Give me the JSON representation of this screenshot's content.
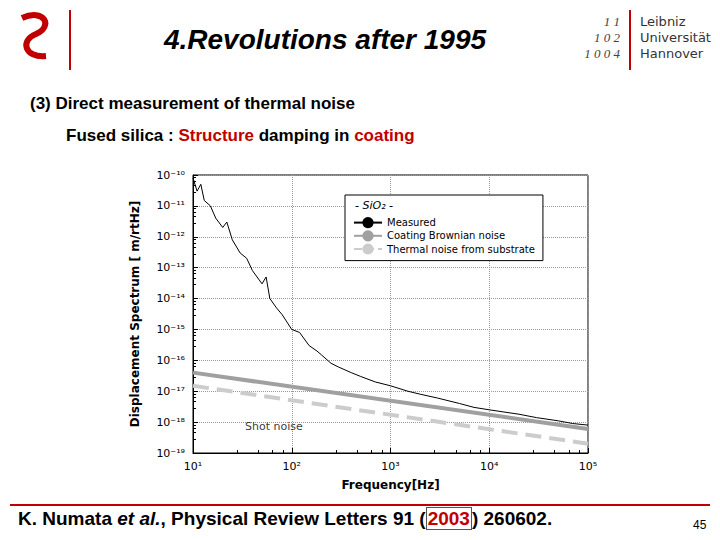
{
  "slide": {
    "title": "4.Revolutions after 1995",
    "university": [
      "Leibniz",
      "Universität",
      "Hannover"
    ],
    "logo_digits": [
      "1 1",
      "1 0 2",
      "1 0 0 4"
    ],
    "subtitle_lines": [
      [
        {
          "text": "(3) Direct measurement of thermal noise"
        }
      ],
      [
        {
          "text": "Fused silica : "
        },
        {
          "text": "Structure",
          "color": "#c00000"
        },
        {
          "text": " damping in "
        },
        {
          "text": "coating",
          "color": "#c00000"
        }
      ]
    ],
    "citation": [
      {
        "text": "K. Numata "
      },
      {
        "text": "et al.",
        "italic": true
      },
      {
        "text": ", Physical Review Letters 91 ("
      },
      {
        "text": "2003",
        "color": "#c00000",
        "boxed": true
      },
      {
        "text": ") 260602."
      }
    ],
    "page_number": "45"
  },
  "chart_data": {
    "type": "line",
    "log": true,
    "grid": true,
    "legend": "top-right",
    "legend_title": "- SiO₂ -",
    "x_label": "Frequency[Hz]",
    "y_label": "Displacement Spectrum [ m/rtHz]",
    "xlim": [
      10,
      100000
    ],
    "xticks": [
      {
        "value": 10,
        "label": "10¹"
      },
      {
        "value": 100,
        "label": "10²"
      },
      {
        "value": 1000,
        "label": "10³"
      },
      {
        "value": 10000,
        "label": "10⁴"
      },
      {
        "value": 100000,
        "label": "10⁵"
      }
    ],
    "ylim": [
      1e-19,
      1e-10
    ],
    "yticks": [
      {
        "value": 1e-19,
        "label": "10⁻¹⁹"
      },
      {
        "value": 1e-18,
        "label": "10⁻¹⁸"
      },
      {
        "value": 1e-17,
        "label": "10⁻¹⁷"
      },
      {
        "value": 1e-16,
        "label": "10⁻¹⁶"
      },
      {
        "value": 1e-15,
        "label": "10⁻¹⁵"
      },
      {
        "value": 1e-14,
        "label": "10⁻¹⁴"
      },
      {
        "value": 1e-13,
        "label": "10⁻¹³"
      },
      {
        "value": 1e-12,
        "label": "10⁻¹²"
      },
      {
        "value": 1e-11,
        "label": "10⁻¹¹"
      },
      {
        "value": 1e-10,
        "label": "10⁻¹⁰"
      }
    ],
    "series": [
      {
        "name": "Measured",
        "color": "#000000",
        "line_style": "solid",
        "x": [
          10,
          11,
          12,
          13,
          15,
          17,
          20,
          22,
          25,
          30,
          35,
          40,
          50,
          55,
          60,
          70,
          80,
          100,
          120,
          150,
          180,
          200,
          250,
          300,
          400,
          500,
          700,
          1000,
          1500,
          2000,
          3000,
          5000,
          7000,
          10000,
          20000,
          30000,
          50000,
          70000,
          100000
        ],
        "values": [
          8e-11,
          3e-11,
          5e-11,
          1.5e-11,
          1e-11,
          4e-12,
          2e-12,
          3e-12,
          8e-13,
          3e-13,
          2e-13,
          8e-14,
          3e-14,
          5e-14,
          1e-14,
          5e-15,
          3e-15,
          1e-15,
          8e-16,
          3e-16,
          2e-16,
          1.5e-16,
          8e-17,
          6e-17,
          4e-17,
          3e-17,
          2e-17,
          1.5e-17,
          1e-17,
          8e-18,
          6e-18,
          4e-18,
          3e-18,
          2.5e-18,
          1.8e-18,
          1.4e-18,
          1.1e-18,
          9e-19,
          8e-19
        ]
      },
      {
        "name": "Coating Brownian noise",
        "color": "#a0a0a0",
        "line_style": "solid",
        "x": [
          10,
          100000
        ],
        "values": [
          4e-17,
          6e-19
        ]
      },
      {
        "name": "Thermal noise from substrate",
        "color": "#cccccc",
        "line_style": "dashed",
        "x": [
          10,
          100000
        ],
        "values": [
          1.5e-17,
          2e-19
        ]
      }
    ],
    "annotations": [
      {
        "text": "Shot noise",
        "x": 30,
        "y": 7e-19
      }
    ]
  }
}
